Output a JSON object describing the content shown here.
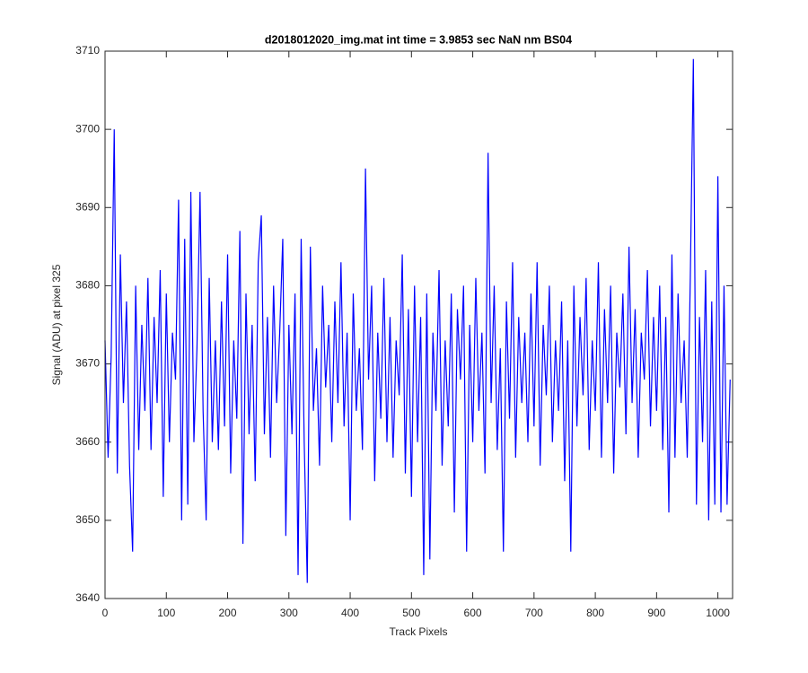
{
  "chart_data": {
    "type": "line",
    "title": "d2018012020_img.mat int time = 3.9853 sec  NaN nm BS04",
    "x_label": "Track Pixels",
    "y_label": "Signal (ADU) at pixel 325",
    "xlim": [
      0,
      1024
    ],
    "ylim": [
      3640,
      3710
    ],
    "xticks": [
      0,
      100,
      200,
      300,
      400,
      500,
      600,
      700,
      800,
      900,
      1000
    ],
    "yticks": [
      3640,
      3650,
      3660,
      3670,
      3680,
      3690,
      3700,
      3710
    ],
    "series": [
      {
        "color": "#0000ff",
        "x": [
          0,
          5,
          10,
          15,
          20,
          25,
          30,
          35,
          40,
          45,
          50,
          55,
          60,
          65,
          70,
          75,
          80,
          85,
          90,
          95,
          100,
          105,
          110,
          115,
          120,
          125,
          130,
          135,
          140,
          145,
          150,
          155,
          160,
          165,
          170,
          175,
          180,
          185,
          190,
          195,
          200,
          205,
          210,
          215,
          220,
          225,
          230,
          235,
          240,
          245,
          250,
          255,
          260,
          265,
          270,
          275,
          280,
          285,
          290,
          295,
          300,
          305,
          310,
          315,
          320,
          325,
          330,
          335,
          340,
          345,
          350,
          355,
          360,
          365,
          370,
          375,
          380,
          385,
          390,
          395,
          400,
          405,
          410,
          415,
          420,
          425,
          430,
          435,
          440,
          445,
          450,
          455,
          460,
          465,
          470,
          475,
          480,
          485,
          490,
          495,
          500,
          505,
          510,
          515,
          520,
          525,
          530,
          535,
          540,
          545,
          550,
          555,
          560,
          565,
          570,
          575,
          580,
          585,
          590,
          595,
          600,
          605,
          610,
          615,
          620,
          625,
          630,
          635,
          640,
          645,
          650,
          655,
          660,
          665,
          670,
          675,
          680,
          685,
          690,
          695,
          700,
          705,
          710,
          715,
          720,
          725,
          730,
          735,
          740,
          745,
          750,
          755,
          760,
          765,
          770,
          775,
          780,
          785,
          790,
          795,
          800,
          805,
          810,
          815,
          820,
          825,
          830,
          835,
          840,
          845,
          850,
          855,
          860,
          865,
          870,
          875,
          880,
          885,
          890,
          895,
          900,
          905,
          910,
          915,
          920,
          925,
          930,
          935,
          940,
          945,
          950,
          955,
          960,
          965,
          970,
          975,
          980,
          985,
          990,
          995,
          1000,
          1005,
          1010,
          1015,
          1020
        ],
        "values": [
          3673,
          3658,
          3671,
          3700,
          3656,
          3684,
          3665,
          3678,
          3657,
          3646,
          3680,
          3659,
          3675,
          3664,
          3681,
          3659,
          3676,
          3665,
          3682,
          3653,
          3679,
          3660,
          3674,
          3668,
          3691,
          3650,
          3686,
          3652,
          3692,
          3660,
          3672,
          3692,
          3664,
          3650,
          3681,
          3660,
          3673,
          3659,
          3678,
          3662,
          3684,
          3656,
          3673,
          3663,
          3687,
          3647,
          3679,
          3661,
          3675,
          3655,
          3683,
          3689,
          3661,
          3676,
          3658,
          3680,
          3665,
          3674,
          3686,
          3648,
          3675,
          3661,
          3679,
          3643,
          3686,
          3660,
          3642,
          3685,
          3664,
          3672,
          3657,
          3680,
          3667,
          3675,
          3660,
          3678,
          3665,
          3683,
          3662,
          3674,
          3650,
          3679,
          3664,
          3672,
          3659,
          3695,
          3668,
          3680,
          3655,
          3674,
          3663,
          3681,
          3660,
          3676,
          3658,
          3673,
          3666,
          3684,
          3656,
          3677,
          3653,
          3680,
          3660,
          3676,
          3643,
          3679,
          3645,
          3674,
          3664,
          3682,
          3657,
          3673,
          3662,
          3679,
          3651,
          3677,
          3668,
          3680,
          3646,
          3675,
          3660,
          3681,
          3664,
          3674,
          3656,
          3697,
          3665,
          3680,
          3659,
          3672,
          3646,
          3678,
          3663,
          3683,
          3658,
          3676,
          3665,
          3674,
          3660,
          3679,
          3662,
          3683,
          3657,
          3675,
          3666,
          3680,
          3660,
          3673,
          3664,
          3678,
          3655,
          3673,
          3646,
          3680,
          3662,
          3676,
          3666,
          3681,
          3659,
          3673,
          3664,
          3683,
          3658,
          3677,
          3665,
          3680,
          3656,
          3674,
          3667,
          3679,
          3661,
          3685,
          3665,
          3677,
          3658,
          3674,
          3668,
          3682,
          3662,
          3676,
          3664,
          3680,
          3659,
          3676,
          3651,
          3684,
          3658,
          3679,
          3665,
          3673,
          3658,
          3681,
          3709,
          3652,
          3676,
          3660,
          3682,
          3650,
          3678,
          3652,
          3694,
          3651,
          3680,
          3652,
          3668
        ]
      }
    ]
  }
}
